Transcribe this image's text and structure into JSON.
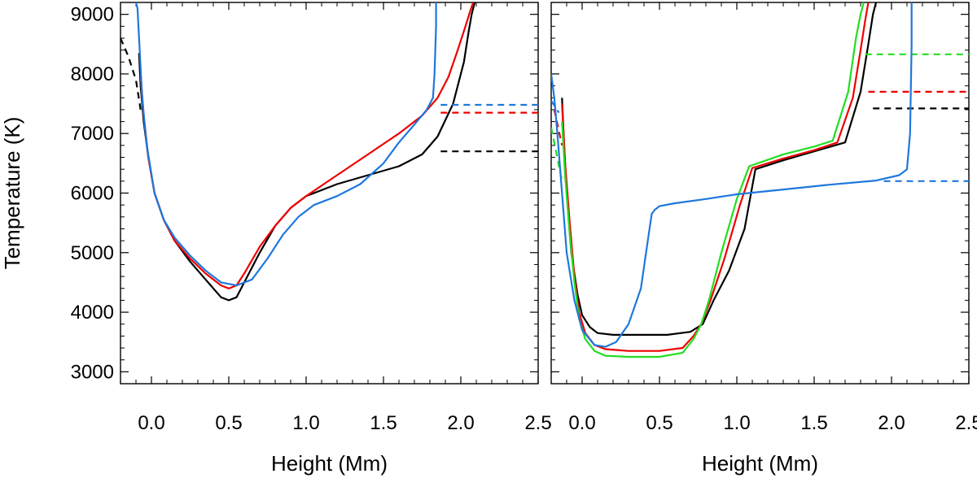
{
  "chart_data": [
    {
      "type": "line",
      "panel": "left",
      "title": "",
      "xlabel": "Height (Mm)",
      "ylabel": "Temperature (K)",
      "xlim": [
        -0.2,
        2.5
      ],
      "ylim": [
        2800,
        9200
      ],
      "xticks": [
        0.0,
        0.5,
        1.0,
        1.5,
        2.0,
        2.5
      ],
      "yticks": [
        3000,
        4000,
        5000,
        6000,
        7000,
        8000,
        9000
      ],
      "xtick_labels": [
        "0.0",
        "0.5",
        "1.0",
        "1.5",
        "2.0",
        "2.5"
      ],
      "ytick_labels": [
        "3000",
        "4000",
        "5000",
        "6000",
        "7000",
        "8000",
        "9000"
      ],
      "grid": false,
      "legend": "none",
      "series": [
        {
          "color": "#000000",
          "style": "solid",
          "x": [
            -0.08,
            -0.07,
            -0.05,
            -0.02,
            0.02,
            0.08,
            0.15,
            0.25,
            0.35,
            0.45,
            0.5,
            0.55,
            0.6,
            0.7,
            0.8,
            0.9,
            1.0,
            1.2,
            1.4,
            1.6,
            1.75,
            1.85,
            1.95,
            2.02,
            2.05,
            2.07,
            2.09
          ],
          "y": [
            8350,
            7800,
            7200,
            6600,
            6000,
            5550,
            5200,
            4850,
            4550,
            4250,
            4200,
            4250,
            4500,
            5000,
            5450,
            5750,
            5950,
            6150,
            6300,
            6450,
            6650,
            6950,
            7500,
            8200,
            8700,
            9000,
            9200
          ]
        },
        {
          "color": "#000000",
          "style": "dashed",
          "x": [
            -0.2,
            -0.15,
            -0.1,
            -0.07
          ],
          "y": [
            8600,
            8300,
            7900,
            7400
          ]
        },
        {
          "color": "#000000",
          "style": "dashed",
          "x": [
            1.87,
            2.5
          ],
          "y": [
            6700,
            6700
          ]
        },
        {
          "color": "#ee0000",
          "style": "solid",
          "x": [
            -0.07,
            -0.05,
            -0.02,
            0.02,
            0.08,
            0.15,
            0.25,
            0.35,
            0.45,
            0.5,
            0.55,
            0.6,
            0.7,
            0.8,
            0.9,
            1.0,
            1.2,
            1.4,
            1.6,
            1.75,
            1.85,
            1.92,
            1.98,
            2.03,
            2.06,
            2.08
          ],
          "y": [
            8000,
            7300,
            6600,
            6000,
            5550,
            5200,
            4900,
            4650,
            4450,
            4400,
            4450,
            4650,
            5100,
            5450,
            5750,
            5950,
            6300,
            6650,
            7000,
            7300,
            7600,
            7950,
            8400,
            8800,
            9050,
            9200
          ]
        },
        {
          "color": "#ee0000",
          "style": "dashed",
          "x": [
            1.87,
            2.5
          ],
          "y": [
            7350,
            7350
          ]
        },
        {
          "color": "#1e78dc",
          "style": "solid",
          "x": [
            -0.1,
            -0.09,
            -0.08,
            -0.06,
            -0.03,
            0.02,
            0.08,
            0.15,
            0.25,
            0.35,
            0.45,
            0.55,
            0.65,
            0.75,
            0.85,
            0.95,
            1.05,
            1.2,
            1.35,
            1.5,
            1.6,
            1.7,
            1.78,
            1.82,
            1.83,
            1.84,
            1.84
          ],
          "y": [
            9200,
            9100,
            8600,
            7600,
            6800,
            6000,
            5550,
            5250,
            4950,
            4700,
            4500,
            4450,
            4550,
            4900,
            5300,
            5600,
            5800,
            5950,
            6150,
            6500,
            6850,
            7150,
            7400,
            7600,
            8000,
            8800,
            9200
          ]
        },
        {
          "color": "#1e78dc",
          "style": "dashed",
          "x": [
            1.87,
            2.5
          ],
          "y": [
            7480,
            7480
          ]
        }
      ]
    },
    {
      "type": "line",
      "panel": "right",
      "title": "",
      "xlabel": "Height (Mm)",
      "ylabel": "",
      "xlim": [
        -0.2,
        2.5
      ],
      "ylim": [
        2800,
        9200
      ],
      "xticks": [
        0.0,
        0.5,
        1.0,
        1.5,
        2.0,
        2.5
      ],
      "yticks": [
        3000,
        4000,
        5000,
        6000,
        7000,
        8000,
        9000
      ],
      "xtick_labels": [
        "0.0",
        "0.5",
        "1.0",
        "1.5",
        "2.0",
        "2.5"
      ],
      "grid": false,
      "legend": "none",
      "series": [
        {
          "color": "#000000",
          "style": "solid",
          "x": [
            -0.13,
            -0.12,
            -0.1,
            -0.07,
            -0.03,
            0.0,
            0.05,
            0.1,
            0.2,
            0.4,
            0.55,
            0.7,
            0.78,
            0.85,
            0.95,
            1.05,
            1.12,
            1.3,
            1.5,
            1.7,
            1.8,
            1.85,
            1.88,
            1.9
          ],
          "y": [
            7600,
            7000,
            6000,
            5000,
            4300,
            3950,
            3750,
            3650,
            3620,
            3620,
            3620,
            3670,
            3800,
            4200,
            4700,
            5400,
            6400,
            6550,
            6700,
            6850,
            7700,
            8500,
            9000,
            9200
          ]
        },
        {
          "color": "#000000",
          "style": "dashed",
          "x": [
            1.88,
            2.5
          ],
          "y": [
            7420,
            7420
          ]
        },
        {
          "color": "#ee0000",
          "style": "solid",
          "x": [
            -0.13,
            -0.11,
            -0.08,
            -0.05,
            -0.02,
            0.02,
            0.08,
            0.15,
            0.3,
            0.5,
            0.65,
            0.72,
            0.77,
            0.83,
            0.92,
            1.02,
            1.1,
            1.3,
            1.5,
            1.65,
            1.75,
            1.8,
            1.83,
            1.85
          ],
          "y": [
            7500,
            6500,
            5500,
            4600,
            4000,
            3650,
            3450,
            3380,
            3350,
            3350,
            3400,
            3600,
            3800,
            4200,
            4900,
            5800,
            6420,
            6580,
            6720,
            6850,
            7600,
            8400,
            8900,
            9200
          ]
        },
        {
          "color": "#ee0000",
          "style": "dashed",
          "x": [
            -0.18,
            -0.13
          ],
          "y": [
            7400,
            6800
          ]
        },
        {
          "color": "#ee0000",
          "style": "dashed",
          "x": [
            1.85,
            2.5
          ],
          "y": [
            7700,
            7700
          ]
        },
        {
          "color": "#22dd22",
          "style": "solid",
          "x": [
            -0.13,
            -0.11,
            -0.08,
            -0.05,
            -0.02,
            0.02,
            0.08,
            0.15,
            0.3,
            0.5,
            0.65,
            0.72,
            0.77,
            0.82,
            0.9,
            1.0,
            1.08,
            1.3,
            1.5,
            1.62,
            1.72,
            1.77,
            1.8,
            1.82
          ],
          "y": [
            7200,
            6300,
            5300,
            4500,
            3900,
            3550,
            3350,
            3270,
            3250,
            3250,
            3320,
            3550,
            3800,
            4200,
            5000,
            5900,
            6450,
            6650,
            6780,
            6880,
            7700,
            8600,
            9000,
            9200
          ]
        },
        {
          "color": "#22dd22",
          "style": "dashed",
          "x": [
            -0.2,
            -0.13
          ],
          "y": [
            7100,
            6200
          ]
        },
        {
          "color": "#22dd22",
          "style": "dashed",
          "x": [
            1.83,
            2.5
          ],
          "y": [
            8330,
            8330
          ]
        },
        {
          "color": "#1e78dc",
          "style": "solid",
          "x": [
            -0.2,
            -0.18,
            -0.16,
            -0.13,
            -0.1,
            -0.05,
            0.0,
            0.08,
            0.15,
            0.22,
            0.3,
            0.38,
            0.43,
            0.45,
            0.47,
            0.5,
            0.6,
            0.8,
            1.0,
            1.3,
            1.6,
            1.9,
            2.05,
            2.1,
            2.12,
            2.13,
            2.13
          ],
          "y": [
            8000,
            7600,
            7000,
            6000,
            5000,
            4200,
            3700,
            3450,
            3420,
            3500,
            3800,
            4400,
            5300,
            5650,
            5720,
            5780,
            5830,
            5900,
            5980,
            6060,
            6140,
            6210,
            6300,
            6400,
            7000,
            8500,
            9200
          ]
        },
        {
          "color": "#1e78dc",
          "style": "dashed",
          "x": [
            -0.2,
            -0.15
          ],
          "y": [
            7550,
            7350
          ]
        },
        {
          "color": "#1e78dc",
          "style": "dashed",
          "x": [
            1.95,
            2.5
          ],
          "y": [
            6200,
            6200
          ]
        }
      ]
    }
  ]
}
